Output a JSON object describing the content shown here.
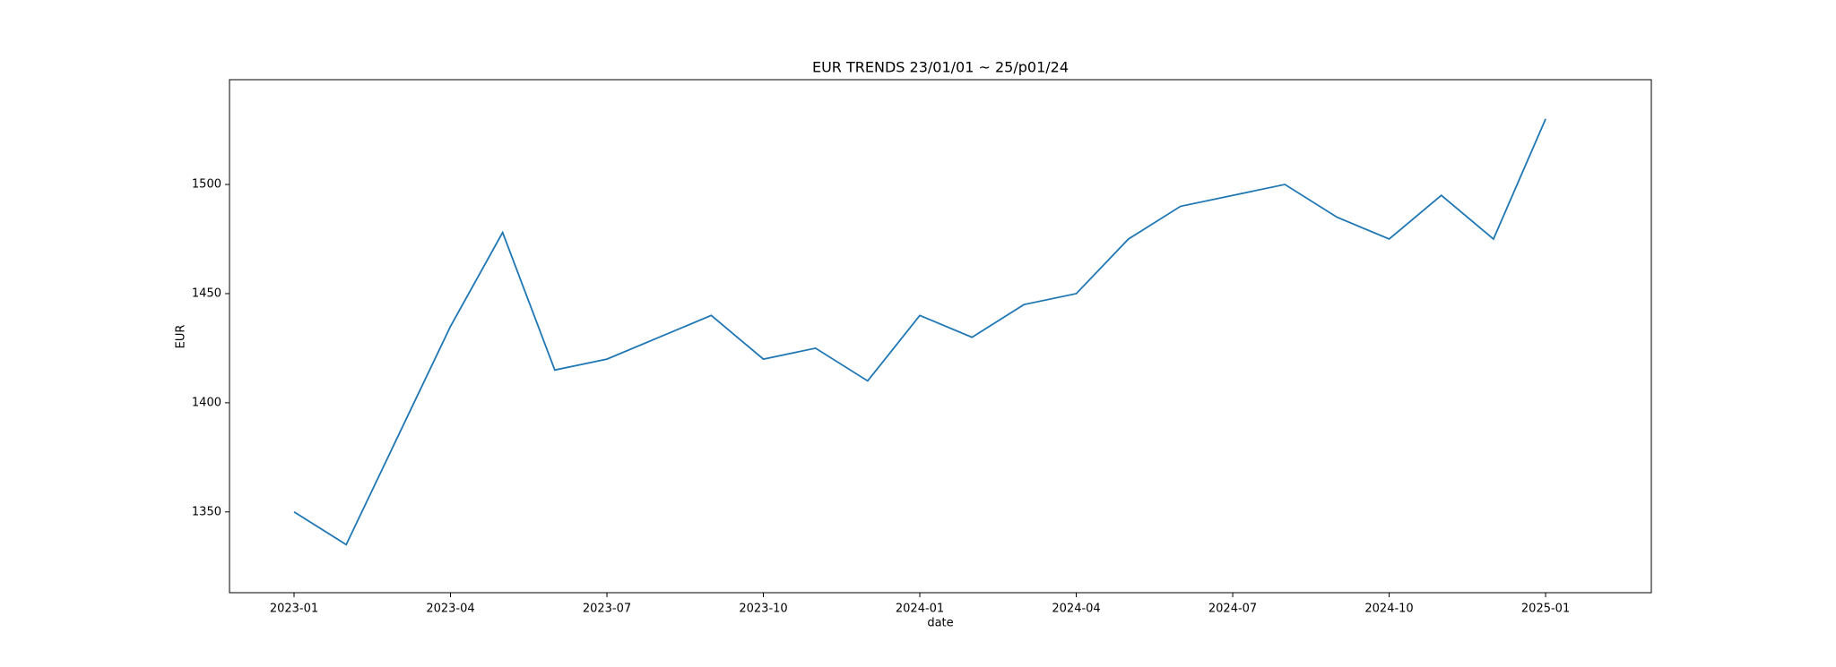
{
  "chart_data": {
    "type": "line",
    "title": "EUR TRENDS 23/01/01 ~ 25/p01/24",
    "x_label": "date",
    "y_label": "EUR",
    "x": [
      "2023-01",
      "2023-02",
      "2023-03",
      "2023-04",
      "2023-05",
      "2023-06",
      "2023-07",
      "2023-08",
      "2023-09",
      "2023-10",
      "2023-11",
      "2023-12",
      "2024-01",
      "2024-02",
      "2024-03",
      "2024-04",
      "2024-05",
      "2024-06",
      "2024-07",
      "2024-08",
      "2024-09",
      "2024-10",
      "2024-11",
      "2024-12",
      "2025-01"
    ],
    "xticks": [
      "2023-01",
      "2023-04",
      "2023-07",
      "2023-10",
      "2024-01",
      "2024-04",
      "2024-07",
      "2024-10",
      "2025-01"
    ],
    "series": [
      {
        "name": "EUR",
        "color": "#1f77b4",
        "values": [
          1350,
          1335,
          1385,
          1435,
          1478,
          1415,
          1420,
          1430,
          1440,
          1420,
          1425,
          1410,
          1440,
          1430,
          1445,
          1450,
          1475,
          1490,
          1495,
          1500,
          1485,
          1475,
          1495,
          1475,
          1530
        ]
      }
    ],
    "ylim": [
      1313,
      1548
    ],
    "yticks": [
      1350,
      1400,
      1450,
      1500
    ]
  }
}
